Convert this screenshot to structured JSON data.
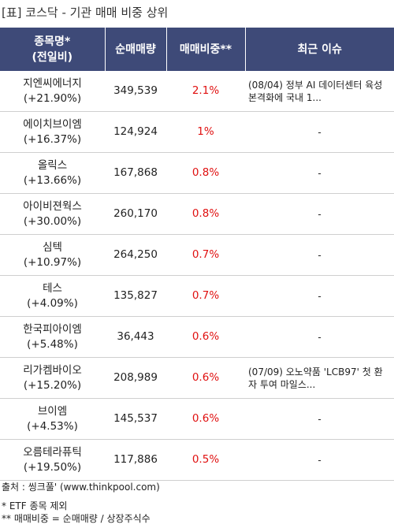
{
  "title": "[표] 코스닥 - 기관 매매 비중 상위",
  "table": {
    "header": [
      [
        "종목명*",
        "(전일비)"
      ],
      "순매매량",
      "매매비중**",
      "최근 이슈"
    ],
    "rows": [
      [
        "지엔씨에너지",
        "(+21.90%)",
        "349,539",
        "2.1%",
        "(08/04) 정부 AI 데이터센터 육성 본격화에 국내 1..."
      ],
      [
        "에이치브이엠",
        "(+16.37%)",
        "124,924",
        "1%",
        "-"
      ],
      [
        "올릭스",
        "(+13.66%)",
        "167,868",
        "0.8%",
        "-"
      ],
      [
        "아이비젼웍스",
        "(+30.00%)",
        "260,170",
        "0.8%",
        "-"
      ],
      [
        "심텍",
        "(+10.97%)",
        "264,250",
        "0.7%",
        "-"
      ],
      [
        "테스",
        "(+4.09%)",
        "135,827",
        "0.7%",
        "-"
      ],
      [
        "한국피아이엠",
        "(+5.48%)",
        "36,443",
        "0.6%",
        "-"
      ],
      [
        "리가켐바이오",
        "(+15.20%)",
        "208,989",
        "0.6%",
        "(07/09) 오노약품 'LCB97' 첫 환자 투여 마일스..."
      ],
      [
        "브이엠",
        "(+4.53%)",
        "145,537",
        "0.6%",
        "-"
      ],
      [
        "오름테라퓨틱",
        "(+19.50%)",
        "117,886",
        "0.5%",
        "-"
      ]
    ]
  },
  "source": "출처 : 씽크풀' (www.thinkpool.com)",
  "notes": [
    "* ETF 종목 제외",
    "** 매매비중 = 순매매량 / 상장주식수"
  ]
}
